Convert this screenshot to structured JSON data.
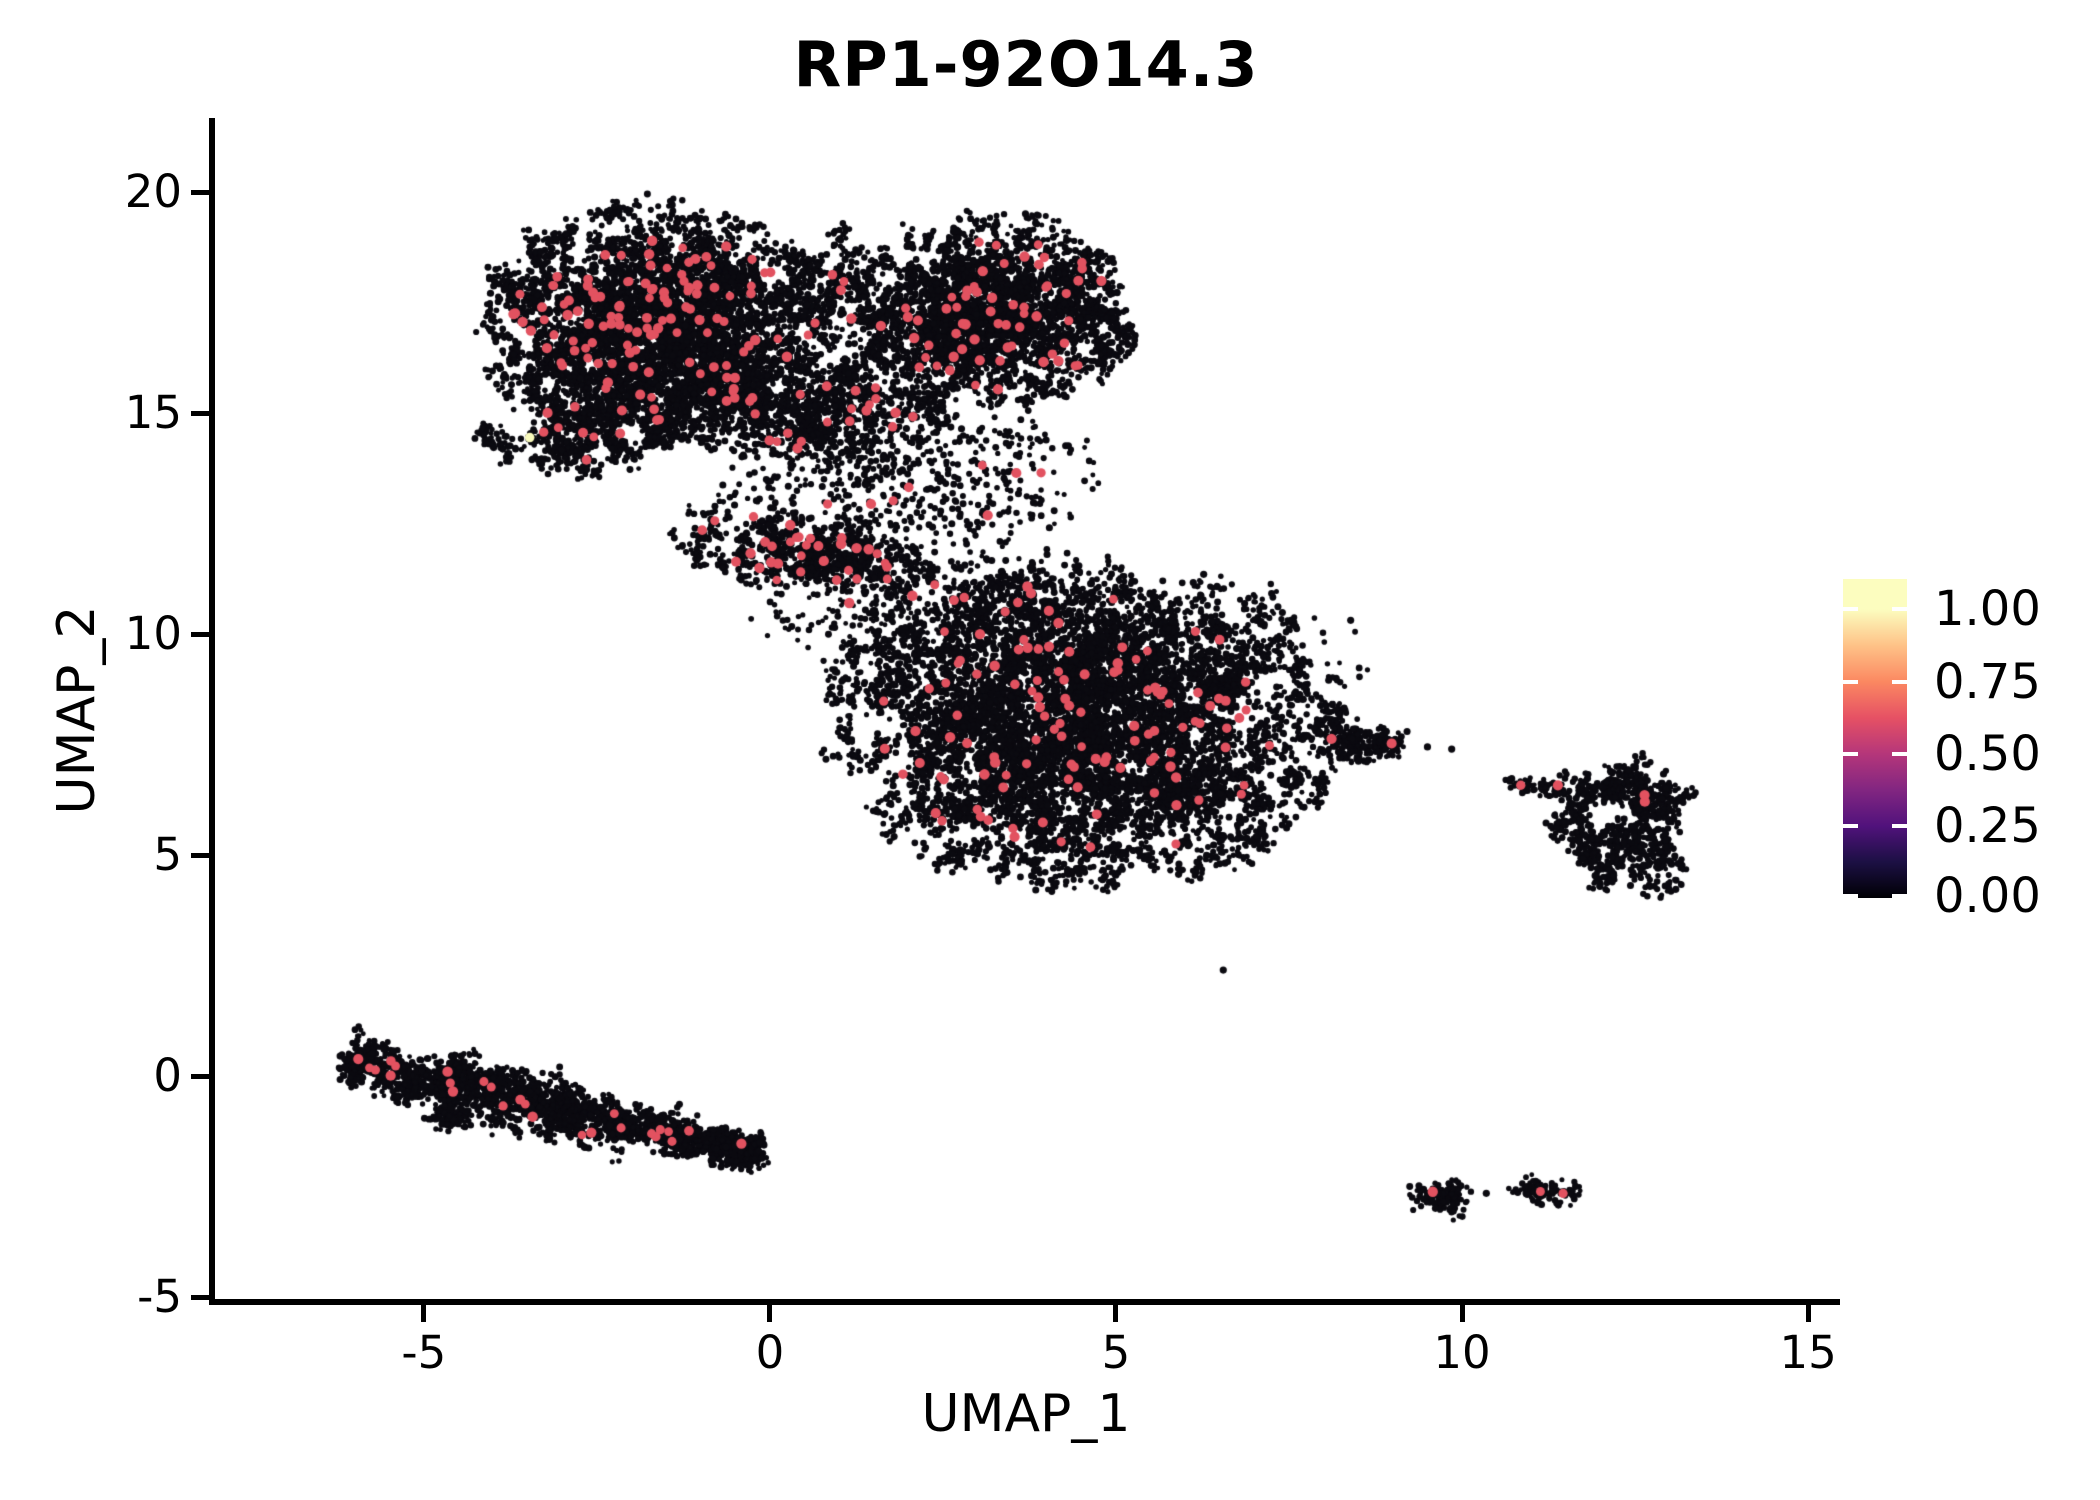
{
  "chart_data": {
    "type": "scatter",
    "title": "RP1-92O14.3",
    "xlabel": "UMAP_1",
    "ylabel": "UMAP_2",
    "xlim": [
      -8.06,
      15.46
    ],
    "ylim": [
      -5.11,
      21.68
    ],
    "x_ticks": [
      -5,
      0,
      5,
      10,
      15
    ],
    "x_tick_labels": [
      "-5",
      "0",
      "5",
      "10",
      "15"
    ],
    "y_ticks": [
      -5,
      0,
      5,
      10,
      15,
      20
    ],
    "y_tick_labels": [
      "-5",
      "0",
      "5",
      "10",
      "15",
      "20"
    ],
    "grid": false,
    "legend": {
      "position": "right",
      "colormap": "magma",
      "colormap_stops": [
        "#000004",
        "#1C1044",
        "#51127C",
        "#822681",
        "#B5367A",
        "#E65164",
        "#FB8861",
        "#FEC287",
        "#FCFDBF"
      ],
      "tick_labels": [
        "1.00",
        "0.75",
        "0.50",
        "0.25",
        "0.00"
      ],
      "tick_values": [
        1.0,
        0.75,
        0.5,
        0.25,
        0.0
      ],
      "range_max": 1.1
    },
    "point_colors": {
      "zero": "#0B0A10",
      "mid": "#E25260",
      "high": "#F9FABC"
    },
    "point_radius": {
      "zero": 3.0,
      "mid": 4.8,
      "high": 4.8
    },
    "seed": 20,
    "clusters": [
      {
        "name": "top-left-lobe",
        "cx": -1.7,
        "cy": 17.0,
        "rx": 1.15,
        "ry": 1.25,
        "rot": -10,
        "n": 5200,
        "red": 110
      },
      {
        "name": "top-right-lobe",
        "cx": 3.2,
        "cy": 17.3,
        "rx": 0.95,
        "ry": 1.05,
        "rot": 0,
        "n": 3400,
        "red": 60
      },
      {
        "name": "top-lobes-connector",
        "cx": 1.0,
        "cy": 17.5,
        "rx": 0.45,
        "ry": 0.85,
        "rot": 0,
        "n": 420,
        "red": 6
      },
      {
        "name": "top-lower-lip",
        "cx": 0.2,
        "cy": 15.2,
        "rx": 1.25,
        "ry": 0.6,
        "rot": -14,
        "n": 1500,
        "red": 28
      },
      {
        "name": "top-left-fringe",
        "cx": -2.7,
        "cy": 14.5,
        "rx": 0.75,
        "ry": 0.45,
        "rot": 14,
        "n": 520,
        "red": 8
      },
      {
        "name": "below-lip-scatter",
        "cx": 1.0,
        "cy": 13.3,
        "rx": 0.85,
        "ry": 0.7,
        "rot": -28,
        "n": 210,
        "red": 5,
        "sparse": true
      },
      {
        "name": "right-lobe-lower-scatter",
        "cx": 3.0,
        "cy": 13.6,
        "rx": 0.85,
        "ry": 0.8,
        "rot": 0,
        "n": 240,
        "red": 4,
        "sparse": true
      },
      {
        "name": "bridge",
        "cx": 0.5,
        "cy": 11.85,
        "rx": 1.0,
        "ry": 0.42,
        "rot": -12,
        "n": 780,
        "red": 30
      },
      {
        "name": "bridge-connector",
        "cx": 2.3,
        "cy": 10.7,
        "rx": 1.15,
        "ry": 0.85,
        "rot": -24,
        "n": 360,
        "red": 9,
        "sparse": true
      },
      {
        "name": "central-main",
        "cx": 4.55,
        "cy": 7.9,
        "rx": 1.75,
        "ry": 1.68,
        "rot": 0,
        "n": 8300,
        "red": 105
      },
      {
        "name": "central-upper-halo",
        "cx": 4.2,
        "cy": 10.1,
        "rx": 2.1,
        "ry": 0.85,
        "rot": -8,
        "n": 430,
        "red": 8,
        "sparse": true
      },
      {
        "name": "central-tail",
        "cx": 8.55,
        "cy": 7.55,
        "rx": 0.32,
        "ry": 0.14,
        "rot": -16,
        "n": 230,
        "red": 2
      },
      {
        "name": "ring-top",
        "cx": 12.2,
        "cy": 6.5,
        "rx": 0.52,
        "ry": 0.26,
        "rot": 4,
        "n": 300,
        "red": 2,
        "hole": {
          "cx": 12.07,
          "cy": 5.95,
          "r": 0.34
        }
      },
      {
        "name": "ring-right",
        "cx": 12.72,
        "cy": 5.6,
        "rx": 0.24,
        "ry": 0.7,
        "rot": 8,
        "n": 260,
        "red": 1,
        "hole": {
          "cx": 12.07,
          "cy": 5.95,
          "r": 0.34
        }
      },
      {
        "name": "ring-left",
        "cx": 11.78,
        "cy": 5.9,
        "rx": 0.2,
        "ry": 0.5,
        "rot": -8,
        "n": 150,
        "red": 0,
        "hole": {
          "cx": 12.07,
          "cy": 5.95,
          "r": 0.34
        }
      },
      {
        "name": "ring-bottom",
        "cx": 12.35,
        "cy": 4.95,
        "rx": 0.33,
        "ry": 0.38,
        "rot": 0,
        "n": 230,
        "red": 0,
        "hole": {
          "cx": 12.07,
          "cy": 5.95,
          "r": 0.34
        }
      },
      {
        "name": "ring-west-trail",
        "cx": 11.05,
        "cy": 6.55,
        "rx": 0.22,
        "ry": 0.1,
        "rot": -8,
        "n": 55,
        "red": 1,
        "sparse": true
      },
      {
        "name": "band-bump",
        "cx": -4.65,
        "cy": -0.9,
        "rx": 0.16,
        "ry": 0.12,
        "rot": 0,
        "n": 120,
        "red": 0
      },
      {
        "name": "island-a",
        "cx": 9.72,
        "cy": -2.7,
        "rx": 0.17,
        "ry": 0.15,
        "rot": 0,
        "n": 140,
        "red": 1
      },
      {
        "name": "island-b",
        "cx": 11.2,
        "cy": -2.6,
        "rx": 0.22,
        "ry": 0.09,
        "rot": -7,
        "n": 95,
        "red": 2
      }
    ],
    "band": {
      "name": "bottom-left-band",
      "p0": {
        "x": -6.1,
        "y": 0.35
      },
      "p1": {
        "x": -0.15,
        "y": -1.78
      },
      "widths": [
        1.1,
        1.3,
        0.5
      ],
      "n": 2800,
      "red": 26
    },
    "singletons": [
      {
        "x": 6.55,
        "y": 2.4,
        "color": "zero"
      },
      {
        "x": 10.35,
        "y": -2.65,
        "color": "zero"
      },
      {
        "x": 9.5,
        "y": 7.45,
        "color": "zero"
      },
      {
        "x": 9.85,
        "y": 7.4,
        "color": "zero"
      },
      {
        "x": -3.47,
        "y": 14.45,
        "color": "high"
      }
    ]
  }
}
